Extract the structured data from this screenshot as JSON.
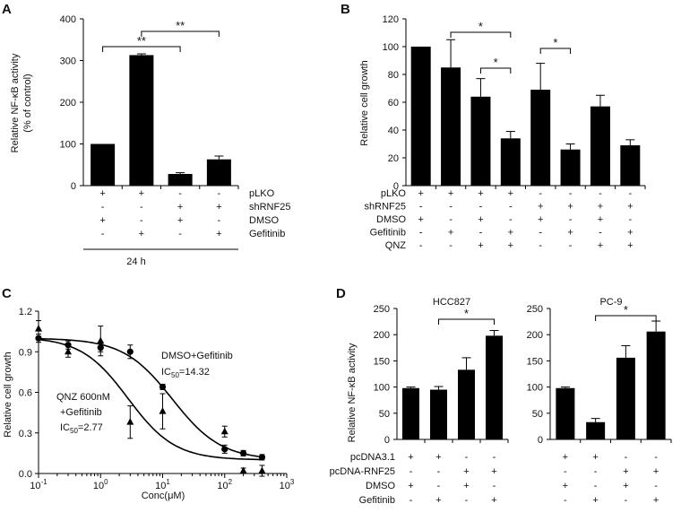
{
  "panels": {
    "A": {
      "letter": "A",
      "ylabel_line1": "Relative NF-κB activity",
      "ylabel_line2": "(% of control)",
      "yticks": [
        "0",
        "100",
        "200",
        "300",
        "400"
      ],
      "rows": [
        {
          "label": "pLKO",
          "signs": [
            "+",
            "+",
            "-",
            "-"
          ]
        },
        {
          "label": "shRNF25",
          "signs": [
            "-",
            "-",
            "+",
            "+"
          ]
        },
        {
          "label": "DMSO",
          "signs": [
            "+",
            "-",
            "+",
            "-"
          ]
        },
        {
          "label": "Gefitinib",
          "signs": [
            "-",
            "+",
            "-",
            "+"
          ]
        }
      ],
      "timepoint": "24 h",
      "sig": [
        "**",
        "**"
      ]
    },
    "B": {
      "letter": "B",
      "ylabel": "Relative cell growth",
      "yticks": [
        "0",
        "20",
        "40",
        "60",
        "80",
        "100",
        "120"
      ],
      "rows": [
        {
          "label": "pLKO",
          "signs": [
            "+",
            "+",
            "+",
            "+",
            "-",
            "-",
            "-",
            "-"
          ]
        },
        {
          "label": "shRNF25",
          "signs": [
            "-",
            "-",
            "-",
            "-",
            "+",
            "+",
            "+",
            "+"
          ]
        },
        {
          "label": "DMSO",
          "signs": [
            "+",
            "-",
            "+",
            "-",
            "+",
            "-",
            "+",
            "-"
          ]
        },
        {
          "label": "Gefitinib",
          "signs": [
            "-",
            "+",
            "-",
            "+",
            "-",
            "+",
            "-",
            "+"
          ]
        },
        {
          "label": "QNZ",
          "signs": [
            "-",
            "-",
            "+",
            "+",
            "-",
            "-",
            "+",
            "+"
          ]
        }
      ],
      "sig": [
        "*",
        "*",
        "*"
      ]
    },
    "C": {
      "letter": "C",
      "ylabel": "Relative cell growth",
      "xlabel": "Conc(μM)",
      "yticks": [
        "0.0",
        "0.3",
        "0.6",
        "0.9",
        "1.2"
      ],
      "xticks": [
        {
          "base": "10",
          "exp": "-1"
        },
        {
          "base": "10",
          "exp": "0"
        },
        {
          "base": "10",
          "exp": "1"
        },
        {
          "base": "10",
          "exp": "2"
        },
        {
          "base": "10",
          "exp": "3"
        }
      ],
      "annot_dmso_1": "DMSO+Gefitinib",
      "annot_dmso_ic": "IC",
      "annot_dmso_sub": "50",
      "annot_dmso_val": "=14.32",
      "annot_qnz_1": "QNZ  600nM",
      "annot_qnz_2": "+Gefitinib",
      "annot_qnz_ic": "IC",
      "annot_qnz_sub": "50",
      "annot_qnz_val": "=2.77"
    },
    "D": {
      "letter": "D",
      "ylabel": "Relative NF-κB activity",
      "sub1_title": "HCC827",
      "sub2_title": "PC-9",
      "yticks": [
        "0",
        "50",
        "100",
        "150",
        "200",
        "250"
      ],
      "rows": [
        {
          "label": "pcDNA3.1",
          "signs": [
            "+",
            "+",
            "-",
            "-"
          ]
        },
        {
          "label": "pcDNA-RNF25",
          "signs": [
            "-",
            "-",
            "+",
            "+"
          ]
        },
        {
          "label": "DMSO",
          "signs": [
            "+",
            "-",
            "+",
            "-"
          ]
        },
        {
          "label": "Gefitinib",
          "signs": [
            "-",
            "+",
            "-",
            "+"
          ]
        }
      ],
      "sig": [
        "*",
        "*"
      ]
    }
  },
  "chart_data": [
    {
      "panel": "A",
      "type": "bar",
      "ylabel": "Relative NF-κB activity (% of control)",
      "ylim": [
        0,
        400
      ],
      "categories": [
        "pLKO+DMSO",
        "pLKO+Gefitinib",
        "shRNF25+DMSO",
        "shRNF25+Gefitinib"
      ],
      "values": [
        100,
        313,
        28,
        63
      ],
      "errors": [
        0,
        3,
        3,
        8
      ]
    },
    {
      "panel": "B",
      "type": "bar",
      "ylabel": "Relative cell growth",
      "ylim": [
        0,
        120
      ],
      "categories": [
        "pLKO+DMSO",
        "pLKO+Gefitinib",
        "pLKO+DMSO+QNZ",
        "pLKO+Gefitinib+QNZ",
        "shRNF25+DMSO",
        "shRNF25+Gefitinib",
        "shRNF25+DMSO+QNZ",
        "shRNF25+Gefitinib+QNZ"
      ],
      "values": [
        100,
        85,
        64,
        34,
        69,
        26,
        57,
        29
      ],
      "errors": [
        0,
        20,
        13,
        5,
        19,
        4,
        8,
        4
      ]
    },
    {
      "panel": "C",
      "type": "line",
      "xlabel": "Conc(μM)",
      "xscale": "log",
      "xlim": [
        0.1,
        1000
      ],
      "ylabel": "Relative cell growth",
      "ylim": [
        0,
        1.2
      ],
      "series": [
        {
          "name": "DMSO+Gefitinib",
          "marker": "circle",
          "ic50": 14.32,
          "x": [
            0.1,
            0.3,
            1,
            3,
            10,
            100,
            200,
            400
          ],
          "y": [
            1.0,
            0.95,
            0.93,
            0.9,
            0.64,
            0.18,
            0.15,
            0.12
          ],
          "err": [
            0.03,
            0.03,
            0.03,
            0.05,
            0.02,
            0.03,
            0.02,
            0.02
          ]
        },
        {
          "name": "QNZ 600nM+Gefitinib",
          "marker": "triangle",
          "ic50": 2.77,
          "x": [
            0.1,
            0.3,
            1,
            3,
            10,
            100,
            200,
            400
          ],
          "y": [
            1.07,
            0.9,
            0.98,
            0.38,
            0.46,
            0.31,
            0.02,
            0.02
          ],
          "err": [
            0.06,
            0.04,
            0.11,
            0.12,
            0.13,
            0.04,
            0.02,
            0.04
          ],
          "fit": {
            "top": 1.01,
            "bottom": 0.1,
            "hill": 1.15
          }
        }
      ],
      "dmso_fit": {
        "top": 1.0,
        "bottom": 0.1,
        "hill": 1.1
      }
    },
    {
      "panel": "D1",
      "type": "bar",
      "title": "HCC827",
      "ylabel": "Relative NF-κB activity",
      "ylim": [
        0,
        250
      ],
      "categories": [
        "pcDNA3.1+DMSO",
        "pcDNA3.1+Gefitinib",
        "pcDNA-RNF25+DMSO",
        "pcDNA-RNF25+Gefitinib"
      ],
      "values": [
        98,
        95,
        133,
        198
      ],
      "errors": [
        2,
        6,
        23,
        10
      ]
    },
    {
      "panel": "D2",
      "type": "bar",
      "title": "PC-9",
      "ylabel": "",
      "ylim": [
        0,
        250
      ],
      "categories": [
        "pcDNA3.1+DMSO",
        "pcDNA3.1+Gefitinib",
        "pcDNA-RNF25+DMSO",
        "pcDNA-RNF25+Gefitinib"
      ],
      "values": [
        98,
        33,
        156,
        206
      ],
      "errors": [
        2,
        7,
        23,
        20
      ]
    }
  ]
}
